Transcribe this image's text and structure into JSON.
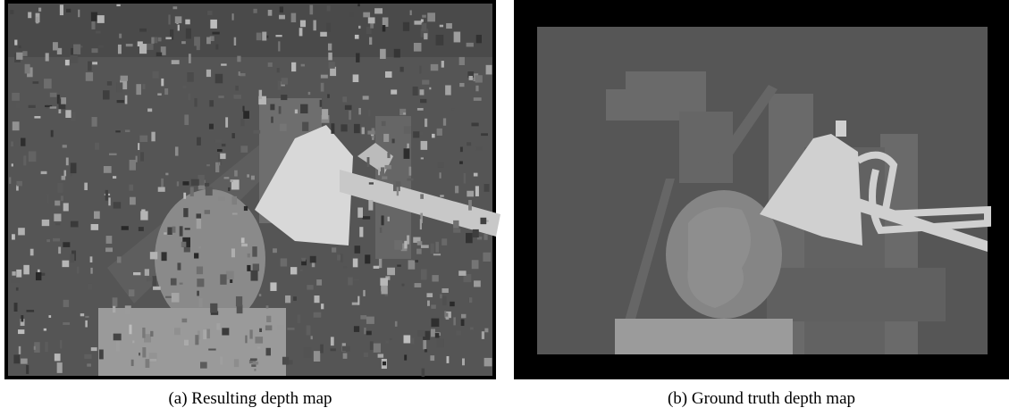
{
  "figures": [
    {
      "caption": "(a) Resulting depth map"
    },
    {
      "caption": "(b) Ground truth depth map"
    }
  ]
}
